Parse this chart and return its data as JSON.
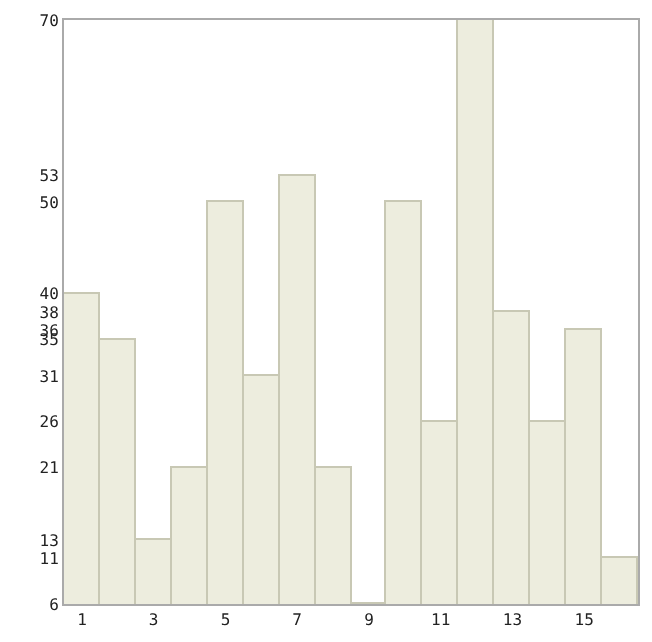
{
  "chart_data": {
    "type": "bar",
    "x": [
      1,
      2,
      3,
      4,
      5,
      6,
      7,
      8,
      9,
      10,
      11,
      12,
      13,
      14,
      15,
      16
    ],
    "values": [
      40,
      35,
      13,
      21,
      50,
      31,
      53,
      21,
      6,
      50,
      26,
      70,
      38,
      26,
      36,
      11
    ],
    "color": "#ededde",
    "xlim": [
      0.5,
      16.5
    ],
    "xticks": [
      1,
      3,
      5,
      7,
      9,
      11,
      13,
      15
    ],
    "ylim": [
      6,
      70
    ],
    "yticks": [
      6,
      11,
      13,
      21,
      26,
      31,
      35,
      36,
      38,
      40,
      50,
      53,
      70
    ]
  }
}
